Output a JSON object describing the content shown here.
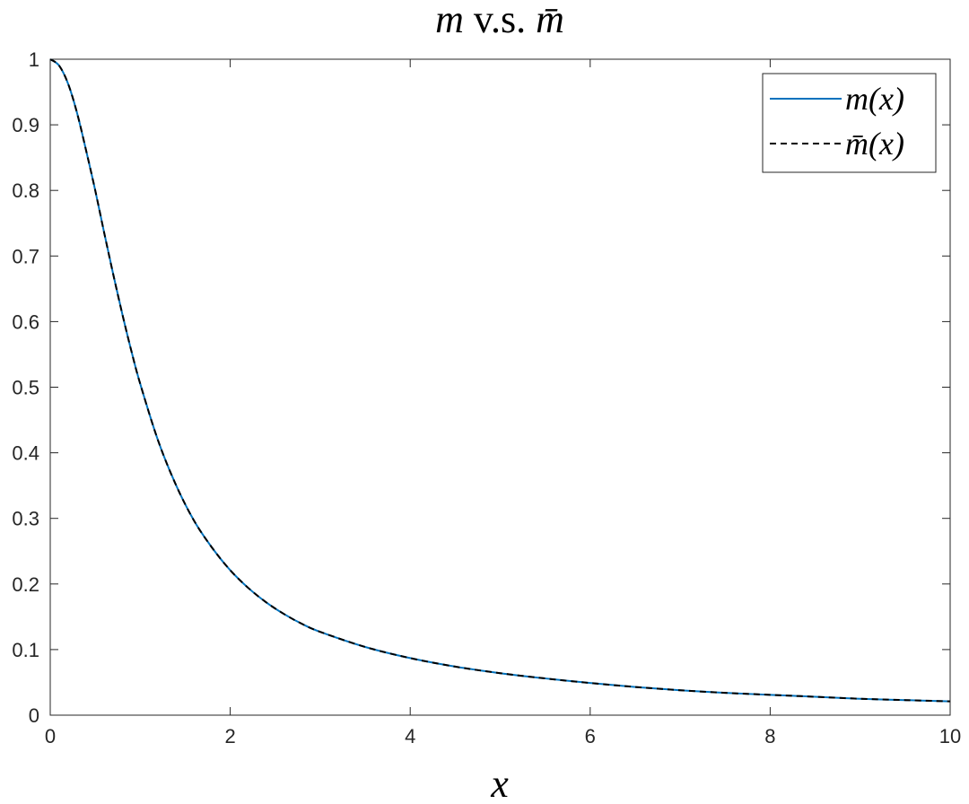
{
  "chart_data": {
    "type": "line",
    "title": "m v.s. m̄",
    "title_parts": {
      "var1": "m",
      "connector": " v.s. ",
      "var2": "m̄"
    },
    "xlabel": "x",
    "ylabel": "",
    "xlim": [
      0,
      10
    ],
    "ylim": [
      0,
      1
    ],
    "xticks": [
      0,
      2,
      4,
      6,
      8,
      10
    ],
    "yticks": [
      0,
      0.1,
      0.2,
      0.3,
      0.4,
      0.5,
      0.6,
      0.7,
      0.8,
      0.9,
      1
    ],
    "xtick_labels": [
      "0",
      "2",
      "4",
      "6",
      "8",
      "10"
    ],
    "ytick_labels": [
      "0",
      "0.1",
      "0.2",
      "0.3",
      "0.4",
      "0.5",
      "0.6",
      "0.7",
      "0.8",
      "0.9",
      "1"
    ],
    "grid": false,
    "legend_position": "top-right",
    "x": [
      0,
      0.1,
      0.2,
      0.3,
      0.4,
      0.5,
      0.6,
      0.7,
      0.8,
      0.9,
      1.0,
      1.2,
      1.4,
      1.6,
      1.8,
      2.0,
      2.2,
      2.4,
      2.6,
      2.8,
      3.0,
      3.5,
      4.0,
      4.5,
      5.0,
      5.5,
      6.0,
      6.5,
      7.0,
      7.5,
      8.0,
      8.5,
      9.0,
      9.5,
      10.0
    ],
    "series": [
      {
        "name": "m(x)",
        "color": "#0072BD",
        "dash": "solid",
        "values": [
          1.0,
          0.99,
          0.962,
          0.917,
          0.86,
          0.8,
          0.735,
          0.672,
          0.612,
          0.556,
          0.505,
          0.418,
          0.35,
          0.296,
          0.255,
          0.221,
          0.194,
          0.172,
          0.154,
          0.139,
          0.127,
          0.104,
          0.087,
          0.074,
          0.064,
          0.056,
          0.049,
          0.043,
          0.038,
          0.034,
          0.031,
          0.028,
          0.025,
          0.023,
          0.021
        ]
      },
      {
        "name": "m̄(x)",
        "color": "#000000",
        "dash": "dashed",
        "values": [
          1.0,
          0.99,
          0.962,
          0.917,
          0.86,
          0.8,
          0.735,
          0.672,
          0.612,
          0.556,
          0.505,
          0.418,
          0.35,
          0.296,
          0.255,
          0.221,
          0.194,
          0.172,
          0.154,
          0.139,
          0.127,
          0.104,
          0.087,
          0.074,
          0.064,
          0.056,
          0.049,
          0.043,
          0.038,
          0.034,
          0.031,
          0.028,
          0.025,
          0.023,
          0.021
        ]
      }
    ]
  }
}
